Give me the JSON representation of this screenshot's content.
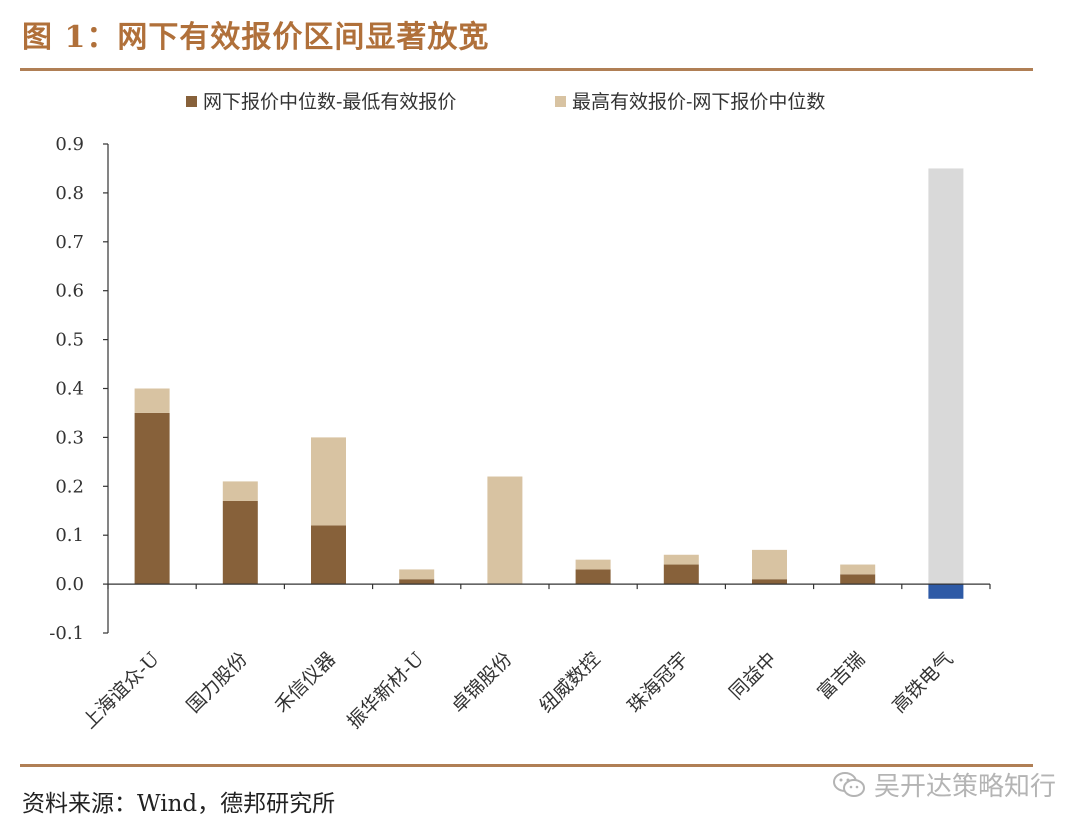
{
  "header": {
    "title": "图 1：网下有效报价区间显著放宽"
  },
  "footer": {
    "source": "资料来源：Wind，德邦研究所"
  },
  "watermark": {
    "text": "吴开达策略知行",
    "icon": "wechat-icon"
  },
  "chart_data": {
    "type": "bar",
    "stacked": true,
    "title": "",
    "xlabel": "",
    "ylabel": "",
    "ylim": [
      -0.1,
      0.9
    ],
    "yticks": [
      "0.9",
      "0.8",
      "0.7",
      "0.6",
      "0.5",
      "0.4",
      "0.3",
      "0.2",
      "0.1",
      "0.0",
      "-0.1"
    ],
    "yticks_values": [
      0.9,
      0.8,
      0.7,
      0.6,
      0.5,
      0.4,
      0.3,
      0.2,
      0.1,
      0.0,
      -0.1
    ],
    "grid": false,
    "legend_position": "top",
    "categories": [
      "上海谊众-U",
      "国力股份",
      "禾信仪器",
      "振华新材-U",
      "卓锦股份",
      "纽威数控",
      "珠海冠宇",
      "同益中",
      "富吉瑞",
      "高铁电气"
    ],
    "series": [
      {
        "name": "网下报价中位数-最低有效报价",
        "color": "#87613a",
        "values": [
          0.35,
          0.17,
          0.12,
          0.01,
          0.0,
          0.03,
          0.04,
          0.01,
          0.02,
          -0.03
        ],
        "last_color": "#2e5aa6"
      },
      {
        "name": "最高有效报价-网下报价中位数",
        "color": "#d8c3a2",
        "values": [
          0.05,
          0.04,
          0.18,
          0.02,
          0.22,
          0.02,
          0.02,
          0.06,
          0.02,
          0.85
        ],
        "last_color": "#d9d9d9"
      }
    ]
  }
}
